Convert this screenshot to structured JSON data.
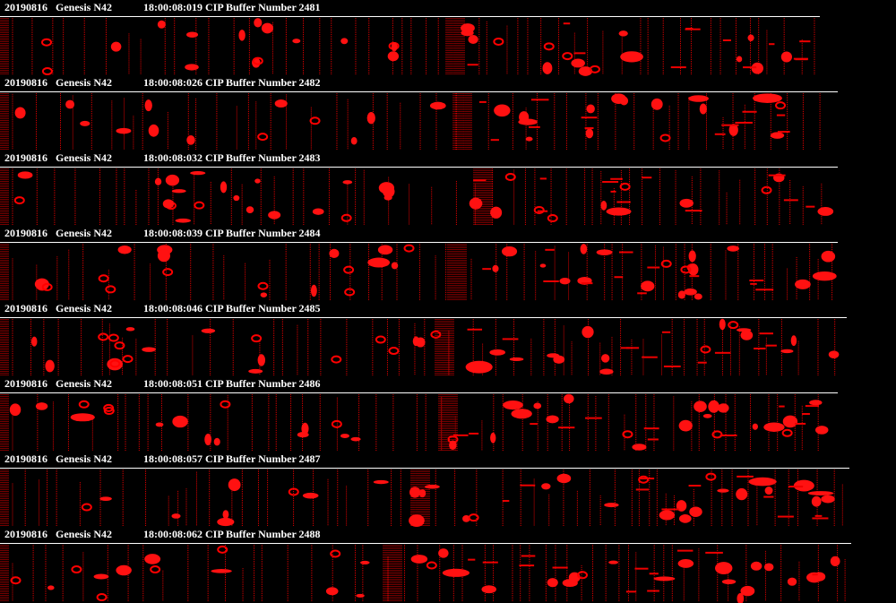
{
  "strips": [
    {
      "date": "20190816",
      "aircraft": "Genesis N42",
      "time": "18:00:08:019",
      "buffer": "CIP Buffer Number 2481"
    },
    {
      "date": "20190816",
      "aircraft": "Genesis N42",
      "time": "18:00:08:026",
      "buffer": "CIP Buffer Number 2482"
    },
    {
      "date": "20190816",
      "aircraft": "Genesis N42",
      "time": "18:00:08:032",
      "buffer": "CIP Buffer Number 2483"
    },
    {
      "date": "20190816",
      "aircraft": "Genesis N42",
      "time": "18:00:08:039",
      "buffer": "CIP Buffer Number 2484"
    },
    {
      "date": "20190816",
      "aircraft": "Genesis N42",
      "time": "18:00:08:046",
      "buffer": "CIP Buffer Number 2485"
    },
    {
      "date": "20190816",
      "aircraft": "Genesis N42",
      "time": "18:00:08:051",
      "buffer": "CIP Buffer Number 2486"
    },
    {
      "date": "20190816",
      "aircraft": "Genesis N42",
      "time": "18:00:08:057",
      "buffer": "CIP Buffer Number 2487"
    },
    {
      "date": "20190816",
      "aircraft": "Genesis N42",
      "time": "18:00:08:062",
      "buffer": "CIP Buffer Number 2488"
    }
  ]
}
